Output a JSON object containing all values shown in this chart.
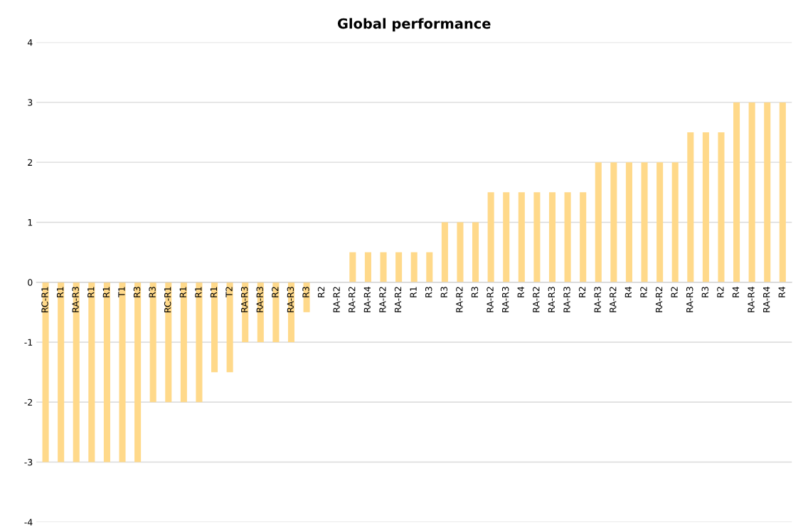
{
  "chart_data": {
    "type": "bar",
    "title": "Global performance",
    "categories": [
      "RC-R1",
      "R1",
      "RA-R3",
      "R1",
      "R1",
      "T1",
      "R3",
      "R3",
      "RC-R1",
      "R1",
      "R1",
      "R1",
      "T2",
      "RA-R3",
      "RA-R3",
      "R2",
      "RA-R3",
      "R3",
      "R2",
      "RA-R2",
      "RA-R2",
      "RA-R4",
      "RA-R2",
      "RA-R2",
      "R1",
      "R3",
      "R3",
      "RA-R2",
      "R3",
      "RA-R2",
      "RA-R3",
      "R4",
      "RA-R2",
      "RA-R3",
      "RA-R3",
      "R2",
      "RA-R3",
      "RA-R2",
      "R4",
      "R2",
      "RA-R2",
      "R2",
      "RA-R3",
      "R3",
      "R2",
      "R4",
      "RA-R4",
      "RA-R4",
      "R4"
    ],
    "values": [
      -3,
      -3,
      -3,
      -3,
      -3,
      -3,
      -3,
      -2,
      -2,
      -2,
      -2,
      -1.5,
      -1.5,
      -1,
      -1,
      -1,
      -1,
      -0.5,
      0,
      0,
      0.5,
      0.5,
      0.5,
      0.5,
      0.5,
      0.5,
      1,
      1,
      1,
      1.5,
      1.5,
      1.5,
      1.5,
      1.5,
      1.5,
      1.5,
      2,
      2,
      2,
      2,
      2,
      2,
      2.5,
      2.5,
      2.5,
      3,
      3,
      3,
      3
    ],
    "color": "#ffd98a",
    "ylim": [
      -4,
      4
    ],
    "yticks": [
      -4,
      -3,
      -2,
      -1,
      0,
      1,
      2,
      3,
      4
    ],
    "grid": "y"
  }
}
